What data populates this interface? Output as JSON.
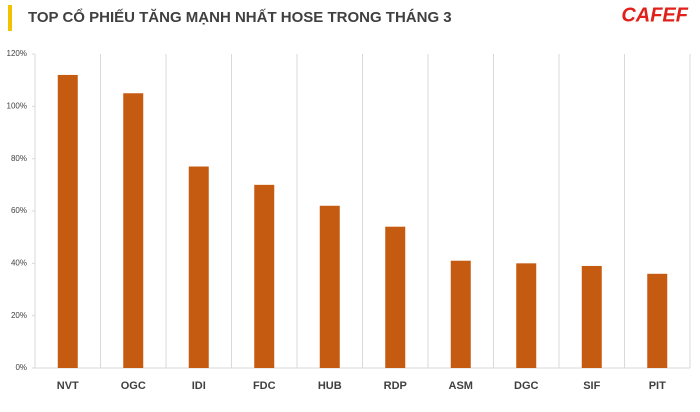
{
  "chart_data": {
    "type": "bar",
    "title": "TOP CỔ PHIẾU TĂNG MẠNH NHẤT  HOSE TRONG THÁNG 3",
    "logo": "CAFEF",
    "categories": [
      "NVT",
      "OGC",
      "IDI",
      "FDC",
      "HUB",
      "RDP",
      "ASM",
      "DGC",
      "SIF",
      "PIT"
    ],
    "values": [
      112,
      105,
      77,
      70,
      62,
      54,
      41,
      40,
      39,
      36
    ],
    "color": "#c55a11",
    "ylim": [
      0,
      120
    ],
    "yticks": [
      {
        "value": 0,
        "label": "0%"
      },
      {
        "value": 20,
        "label": "20%"
      },
      {
        "value": 40,
        "label": "40%"
      },
      {
        "value": 60,
        "label": "60%"
      },
      {
        "value": 80,
        "label": "80%"
      },
      {
        "value": 100,
        "label": "100%"
      },
      {
        "value": 120,
        "label": "120%"
      }
    ]
  }
}
